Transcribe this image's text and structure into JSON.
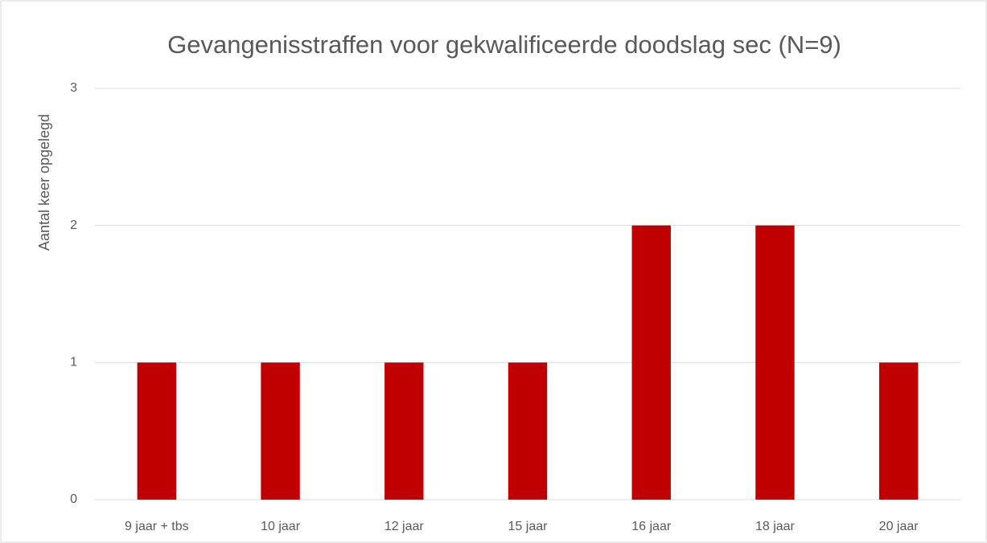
{
  "chart_data": {
    "type": "bar",
    "title": "Gevangenisstraffen voor gekwalificeerde doodslag sec (N=9)",
    "y_label": "Aantal keer opgelegd",
    "categories": [
      "9 jaar + tbs",
      "10 jaar",
      "12 jaar",
      "15 jaar",
      "16 jaar",
      "18 jaar",
      "20 jaar"
    ],
    "values": [
      1,
      1,
      1,
      1,
      2,
      2,
      1
    ],
    "color": "#c00000",
    "ylim": [
      0,
      3
    ],
    "yticks": [
      0,
      1,
      2,
      3
    ],
    "grid": true
  }
}
